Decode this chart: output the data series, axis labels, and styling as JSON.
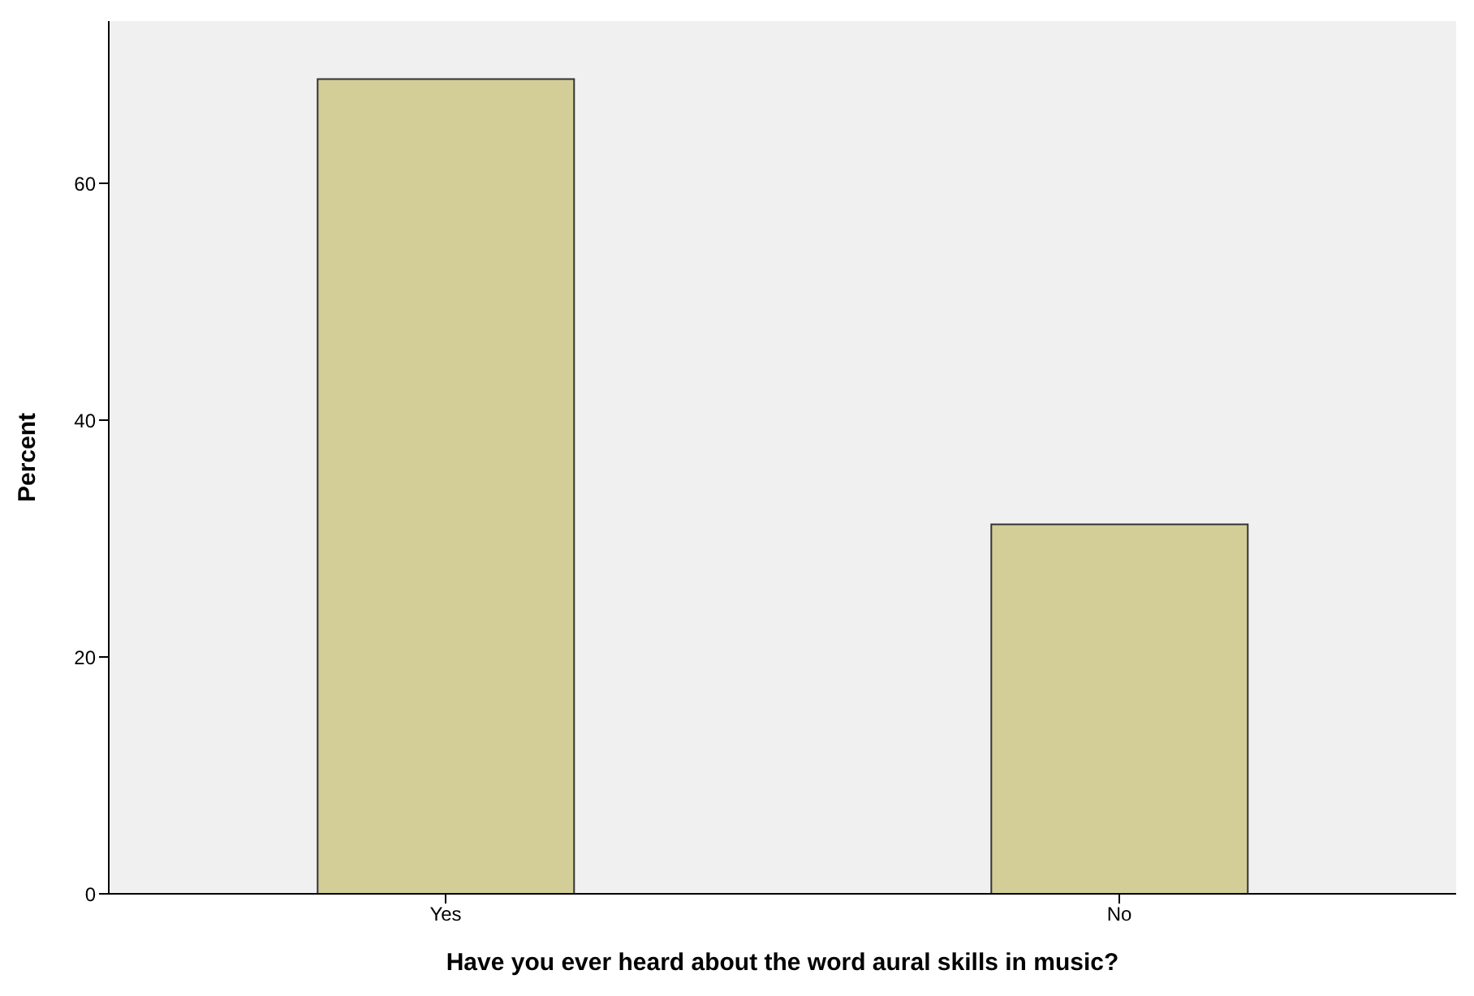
{
  "chart_data": {
    "type": "bar",
    "xlabel": "Have  you ever heard about the word aural skills in music?",
    "ylabel": "Percent",
    "categories": [
      "Yes",
      "No"
    ],
    "values": [
      68.8,
      31.2
    ],
    "color": "#d3ce97",
    "ylim": [
      0,
      73.7
    ],
    "yticks": [
      0,
      20,
      40,
      60
    ],
    "grid": false
  }
}
